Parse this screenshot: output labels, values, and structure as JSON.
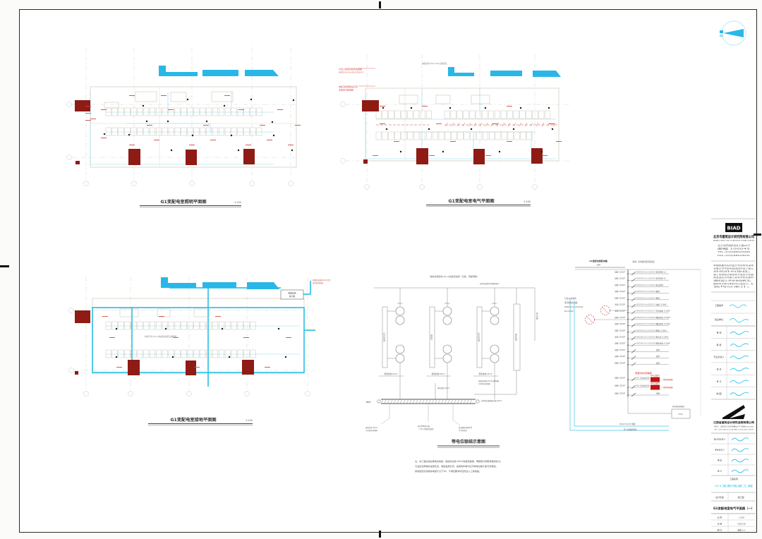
{
  "colors": {
    "maroon": "#8e1b14",
    "canopy_cyan": "#29b7e8",
    "wire_cyan": "#8fdcee",
    "ground_cyan": "#35c2e6",
    "red_note": "#cf4a42",
    "red_box": "#c01414",
    "frame": "#2b2b2b"
  },
  "plans": {
    "lighting": {
      "caption": "G1变配电室照明平面图",
      "scale": "1:100"
    },
    "power": {
      "caption": "G1变配电室电气平面图",
      "scale": "1:100",
      "left_note1a": "引自上级低压柜馈电回路",
      "left_note1b": "WDZ-YJY-4×35-SC50-FC",
      "left_note2a": "电缆沿桥架敷设引至",
      "left_note2b": "本室动力配电箱",
      "top_note": "电缆桥架300×100沿墙安装"
    },
    "grounding": {
      "caption": "G1变配电室接地平面图",
      "scale": "1:100",
      "main_note": "接地干线-40×4热镀锌扁钢沿墙明敷",
      "box_line1": "预留接地",
      "box_line2": "端子箱",
      "right_note1": "热镀锌扁钢-40×4引至",
      "right_note2": "室外接地装置"
    }
  },
  "bonding": {
    "caption": "等电位联结示意图",
    "top_label": "等电位联结线-40×4热镀锌扁钢（沿墙、顶板明敷）",
    "top_label2": "接本层接地干线预留端子",
    "right_label": "接地引线",
    "clamp_label": "接地端子",
    "cabinet_labels": [
      "高压开关柜",
      "变压器",
      "低压开关柜",
      "电缆桥架"
    ],
    "under_labels": [
      "柜体接地-25×4",
      "柜体接地-25×4",
      "柜体接地-25×4"
    ],
    "mid_label": "接地连线-40×4",
    "bus_label_left": "MEB",
    "bus_label_right": "总等电位联结端子板-40×4",
    "note_r1": "热镀锌扁钢-40×4沿墙明敷",
    "note_r2": "引至室外接地网",
    "bus_note1a": "接地干线-40×4",
    "bus_note1b": "引自室外接地网",
    "bus_note2a": "接至MEB端子板",
    "bus_note2b": "（-40×4热镀锌扁钢）",
    "bus_note3a": "接金属管道构件等",
    "bus_note3b": "可导电部分"
  },
  "notes": {
    "lines": [
      "注：本工程采用总等电位联结，联结线采用-40×4热镀锌扁钢，明敷部分刷黄绿相间标识。",
      "凡进出建筑物的金属管道、电缆金属外皮、金属构件等均应与等电位端子板可靠联结。",
      "接地装置实测接地电阻不大于1Ω，不满足要求时应增设人工接地极。"
    ]
  },
  "distribution": {
    "header_left1": "G1变配电室配电箱",
    "header_left2": "1AP",
    "header_right": "（预留）配电箱预留回路容量",
    "incoming_lines": [
      "引自G1变电所",
      "低压柜备用回路",
      "WDZ-YJY-4×25-SC40",
      "Pe=25kW"
    ],
    "circuits": [
      {
        "breaker": "微断 C16/1P",
        "cable": "WDZ-BYJ-3×2.5-JDG20-CC",
        "load": "正常照明 L1"
      },
      {
        "breaker": "微断 C16/1P",
        "cable": "WDZ-BYJ-3×2.5-JDG20-CC",
        "load": "正常照明 L2"
      },
      {
        "breaker": "微断 C16/1P",
        "cable": "WDZ-BYJ-3×2.5-JDG20-CC",
        "load": "应急照明"
      },
      {
        "breaker": "微断 C16/1P",
        "cable": "WDZ-BYJ-3×2.5-JDG20-CC",
        "load": "备用"
      },
      {
        "breaker": "微断 C16/1P",
        "cable": "WDZ-BYJ-3×2.5-JDG20-CC",
        "load": "备用"
      },
      {
        "breaker": "漏电 C16/2P",
        "cable": "WDZ-BYJ-3×4-JDG25-FC",
        "load": "插座 /1.0kW"
      },
      {
        "breaker": "漏电 C16/2P",
        "cable": "WDZ-BYJ-3×4-JDG25-FC",
        "load": "检修插座 /1.0kW"
      },
      {
        "breaker": "微断 C16/3P",
        "cable": "WDZ-BYJ-5×2.5-JDG25-WC",
        "load": "事故风机 /1.5kW"
      },
      {
        "breaker": "微断 C16/3P",
        "cable": "WDZ-BYJ-5×2.5-JDG25-WC",
        "load": "事故风机 /1.5kW"
      },
      {
        "breaker": "微断 C16/2P",
        "cable": "WDZ-BYJ-3×2.5-JDG20-WC",
        "load": "风机 /1.0kW"
      },
      {
        "breaker": "漏电 C16/2P",
        "cable": "WDZ-BYJ-3×2.5-JDG20-FC",
        "load": "排水泵 /1.0kW"
      },
      {
        "breaker": "微断 C16/2P",
        "cable": "WDZ-BYJ-3×2.5-JDG20-WC",
        "load": "控制电源 /1.0kW"
      },
      {
        "breaker": "微断 C16/1P",
        "cable": "",
        "load": "备用"
      },
      {
        "breaker": "微断 C16/2P",
        "cable": "",
        "load": "备用"
      },
      {
        "breaker": "微断 C16/3P",
        "cable": "",
        "load": "备用"
      }
    ],
    "aircon_note": "（预留分体空调电源）",
    "aircon_rows": [
      {
        "breaker": "微断 C20/1P",
        "cable": "WD-空调插座回路",
        "label": "AA1-空调T1",
        "note": "（壁挂机电源）"
      },
      {
        "breaker": "微断 C20/1P",
        "cable": "WD-空调插座回路",
        "label": "AA2-空调T2",
        "note": "（壁挂机电源）"
      }
    ],
    "reserve_breaker": "微断 C16/3P",
    "reserve_load": "预留",
    "bottom_box_label1": "配电预留接线箱",
    "bottom_box_label2": "500×",
    "feeders": [
      "W1-YJY-4×25 电缆",
      "至-1层电缆竖井"
    ]
  },
  "titleblock": {
    "biad_logo": "BIAD",
    "biad_company_cn": "北京市建筑设计研究院有限公司",
    "biad_company_en": "BEIJING INSTITUTE OF ARCHITECTURAL DESIGN",
    "address_lines": [
      "北京市西城区南礼士路62号",
      "邮编 100045",
      "TEL (010)88043999",
      "FAX (010)68034041"
    ],
    "notice_lines": [
      "本图纸著作权归设计单位所有未经",
      "书面许可不得复制或用于本工程以",
      "外的任何项目。",
      "施工前须核对现场尺寸及各专业图",
      "纸无误后方可施工如有不符应及时",
      "通知设计单位协商解决。",
      "图中尺寸除注明外均以毫米计，标",
      "高均以米计。"
    ],
    "field_row1_label": "工程编号",
    "field_row2_label": "建设单位",
    "sig_rows_1": [
      "审  定",
      "审  核",
      "专业负责人",
      "校  对",
      "设  计",
      "制  图"
    ],
    "partner_company_cn": "江西省建筑设计研究总院有限公司",
    "partner_contact_lines": [
      "地址：南昌市北京西路86号  邮编330046",
      "TEL 0791-86211234  FAX 0791-86215678"
    ],
    "sig_rows_2": [
      "设计总负责人",
      "专业负责人",
      "审  核",
      "设  计"
    ],
    "project_label": "工程名称",
    "project_name": "G1变配电室工程",
    "stage_label": "设计阶段",
    "stage_value": "施工图",
    "drawing_title": "G1变配电室电气平面图（一）",
    "fields": [
      {
        "label": "比  例",
        "value": "1:100"
      },
      {
        "label": "日  期",
        "value": "2023.06"
      },
      {
        "label": "图  号",
        "value": "电施-××"
      }
    ]
  }
}
